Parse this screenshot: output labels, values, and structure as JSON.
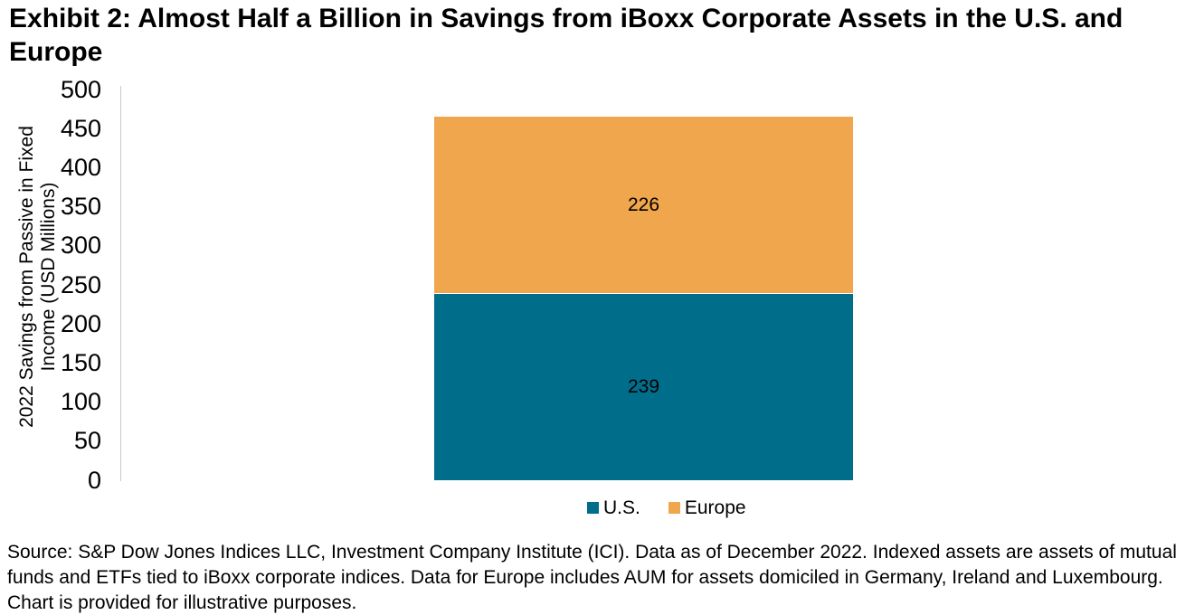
{
  "title": "Exhibit 2: Almost Half a Billion in Savings from iBoxx Corporate Assets in the U.S. and Europe",
  "chart_data": {
    "type": "bar",
    "stacked": true,
    "categories": [
      ""
    ],
    "series": [
      {
        "name": "U.S.",
        "values": [
          239
        ],
        "color": "#006E8A"
      },
      {
        "name": "Europe",
        "values": [
          226
        ],
        "color": "#F0A64C"
      }
    ],
    "title": "Exhibit 2: Almost Half a Billion in Savings from iBoxx Corporate Assets in the U.S. and Europe",
    "xlabel": "",
    "ylabel": "2022 Savings from Passive in Fixed Income (USD Millions)",
    "ylim": [
      0,
      500
    ],
    "ytick_step": 50,
    "grid": false,
    "legend_position": "bottom",
    "data_labels_shown": true,
    "axis_line_color": "#C9C9C9"
  },
  "source_note": "Source: S&P Dow Jones Indices LLC, Investment Company Institute (ICI). Data as of December 2022. Indexed assets are assets of mutual funds and ETFs tied to iBoxx corporate indices. Data for Europe includes AUM for assets domiciled in Germany, Ireland and Luxembourg. Chart is provided for illustrative purposes."
}
